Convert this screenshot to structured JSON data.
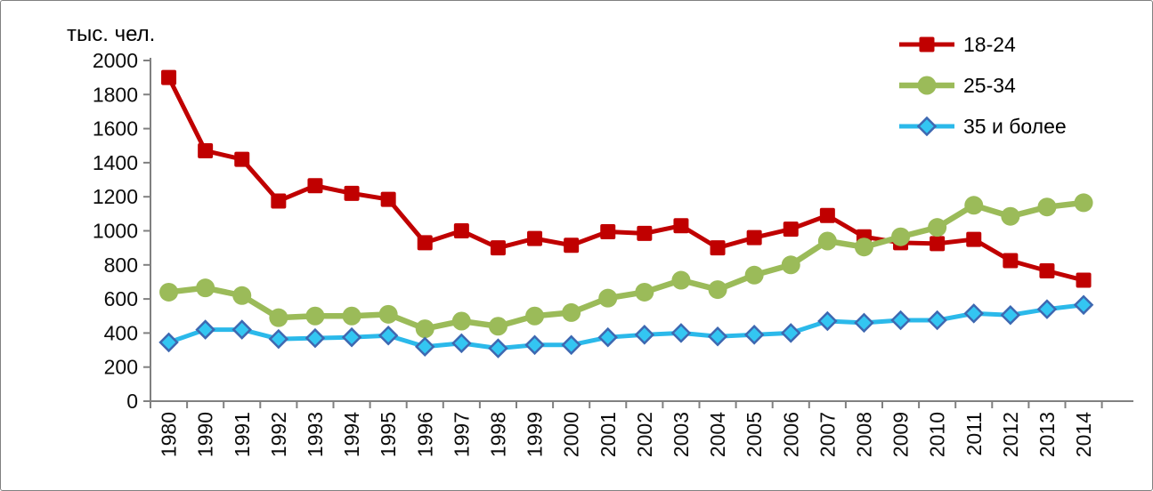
{
  "panel": {
    "background": "#ffffff",
    "border_color": "#808080"
  },
  "chart_data": {
    "type": "line",
    "title": "",
    "xlabel": "",
    "ylabel": "тыс. чел.",
    "ylim": [
      0,
      2000
    ],
    "ytick_step": 200,
    "grid": false,
    "legend_position": "top-right",
    "axis_color": "#808080",
    "text_color": "#0d0d0d",
    "categories": [
      "1980",
      "1990",
      "1991",
      "1992",
      "1993",
      "1994",
      "1995",
      "1996",
      "1997",
      "1998",
      "1999",
      "2000",
      "2001",
      "2002",
      "2003",
      "2004",
      "2005",
      "2006",
      "2007",
      "2008",
      "2009",
      "2010",
      "2011",
      "2012",
      "2013",
      "2014"
    ],
    "series": [
      {
        "name": "18-24",
        "marker": "square",
        "line_color": "#C00000",
        "marker_fill": "#C00000",
        "marker_stroke": "#C00000",
        "line_width": 5,
        "values": [
          1900,
          1470,
          1420,
          1175,
          1265,
          1220,
          1185,
          930,
          1000,
          900,
          955,
          915,
          995,
          985,
          1030,
          900,
          960,
          1010,
          1090,
          965,
          930,
          925,
          950,
          825,
          765,
          710
        ]
      },
      {
        "name": "25-34",
        "marker": "circle",
        "line_color": "#9BBB59",
        "marker_fill": "#9BBB59",
        "marker_stroke": "#9BBB59",
        "line_width": 6.5,
        "values": [
          640,
          665,
          620,
          490,
          500,
          500,
          510,
          425,
          470,
          440,
          500,
          520,
          605,
          640,
          710,
          655,
          740,
          800,
          940,
          905,
          965,
          1020,
          1150,
          1085,
          1140,
          1165
        ]
      },
      {
        "name": "35 и более",
        "marker": "diamond",
        "line_color": "#2BB9EA",
        "marker_fill": "#33C6F2",
        "marker_stroke": "#3E68B1",
        "line_width": 5,
        "values": [
          345,
          420,
          420,
          365,
          370,
          375,
          385,
          320,
          340,
          310,
          330,
          330,
          375,
          390,
          400,
          380,
          390,
          400,
          470,
          460,
          475,
          475,
          515,
          505,
          540,
          565
        ]
      }
    ]
  }
}
